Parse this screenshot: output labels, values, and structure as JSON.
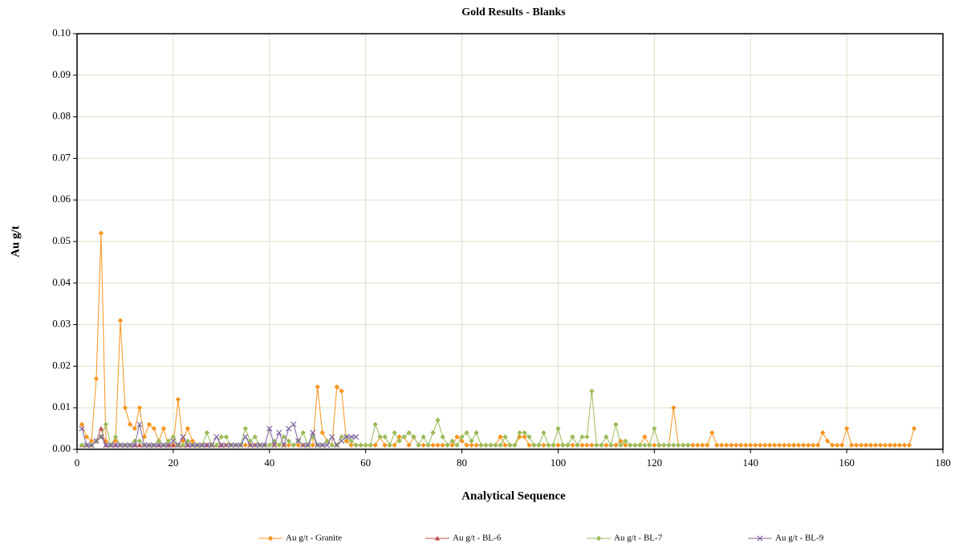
{
  "chart_data": {
    "type": "line",
    "title": "Gold Results - Blanks",
    "x_label": "Analytical Sequence",
    "y_label": "Au g/t",
    "xlim": [
      0,
      180
    ],
    "xticks": [
      0,
      20,
      40,
      60,
      80,
      100,
      120,
      140,
      160,
      180
    ],
    "ylim": [
      0,
      0.1
    ],
    "yticks": [
      {
        "value": 0,
        "label": "0.00"
      },
      {
        "value": 0.01,
        "label": "0.01"
      },
      {
        "value": 0.02,
        "label": "0.02"
      },
      {
        "value": 0.03,
        "label": "0.03"
      },
      {
        "value": 0.04,
        "label": "0.04"
      },
      {
        "value": 0.05,
        "label": "0.05"
      },
      {
        "value": 0.06,
        "label": "0.06"
      },
      {
        "value": 0.07,
        "label": "0.07"
      },
      {
        "value": 0.08,
        "label": "0.08"
      },
      {
        "value": 0.09,
        "label": "0.09"
      },
      {
        "value": 0.1,
        "label": "0.10"
      }
    ],
    "grid": true,
    "legend": "bottom",
    "series": [
      {
        "name": "Au g/t - Granite",
        "color": "#f7941d",
        "marker": "diamond",
        "x": [
          1,
          2,
          3,
          4,
          5,
          6,
          7,
          8,
          9,
          10,
          11,
          12,
          13,
          14,
          15,
          16,
          17,
          18,
          19,
          20,
          21,
          22,
          23,
          24,
          25,
          26,
          27,
          28,
          29,
          30,
          31,
          32,
          33,
          34,
          35,
          36,
          37,
          38,
          39,
          40,
          41,
          42,
          43,
          44,
          45,
          46,
          47,
          48,
          49,
          50,
          51,
          52,
          53,
          54,
          55,
          56,
          57,
          58,
          59,
          60,
          61,
          62,
          63,
          64,
          65,
          66,
          67,
          68,
          69,
          70,
          71,
          72,
          73,
          74,
          75,
          76,
          77,
          78,
          79,
          80,
          81,
          82,
          83,
          84,
          85,
          86,
          87,
          88,
          89,
          90,
          91,
          92,
          93,
          94,
          95,
          96,
          97,
          98,
          99,
          100,
          101,
          102,
          103,
          104,
          105,
          106,
          107,
          108,
          109,
          110,
          111,
          112,
          113,
          114,
          115,
          116,
          117,
          118,
          119,
          120,
          121,
          122,
          123,
          124,
          125,
          126,
          127,
          128,
          129,
          130,
          131,
          132,
          133,
          134,
          135,
          136,
          137,
          138,
          139,
          140,
          141,
          142,
          143,
          144,
          145,
          146,
          147,
          148,
          149,
          150,
          151,
          152,
          153,
          154,
          155,
          156,
          157,
          158,
          159,
          160,
          161,
          162,
          163,
          164,
          165,
          166,
          167,
          168,
          169,
          170,
          171,
          172,
          173,
          174
        ],
        "values": [
          0.006,
          0.003,
          0.002,
          0.017,
          0.052,
          0.002,
          0.001,
          0.002,
          0.031,
          0.01,
          0.006,
          0.005,
          0.01,
          0.003,
          0.006,
          0.005,
          0.002,
          0.005,
          0.001,
          0.001,
          0.012,
          0.002,
          0.005,
          0.002,
          0.001,
          0.001,
          0.001,
          0.001,
          0.001,
          0.001,
          0.001,
          0.001,
          0.001,
          0.001,
          0.001,
          0.001,
          0.001,
          0.001,
          0.001,
          0.001,
          0.001,
          0.001,
          0.001,
          0.001,
          0.001,
          0.001,
          0.001,
          0.001,
          0.001,
          0.015,
          0.004,
          0.002,
          0.001,
          0.015,
          0.014,
          0.002,
          0.001,
          0.001,
          0.001,
          0.001,
          0.001,
          0.001,
          0.003,
          0.001,
          0.001,
          0.001,
          0.003,
          0.003,
          0.001,
          0.003,
          0.001,
          0.001,
          0.001,
          0.001,
          0.001,
          0.001,
          0.001,
          0.001,
          0.003,
          0.002,
          0.001,
          0.001,
          0.001,
          0.001,
          0.001,
          0.001,
          0.001,
          0.003,
          0.001,
          0.001,
          0.001,
          0.003,
          0.003,
          0.001,
          0.001,
          0.001,
          0.001,
          0.001,
          0.001,
          0.001,
          0.001,
          0.001,
          0.001,
          0.001,
          0.001,
          0.001,
          0.001,
          0.001,
          0.001,
          0.001,
          0.001,
          0.001,
          0.002,
          0.001,
          0.001,
          0.001,
          0.001,
          0.003,
          0.001,
          0.001,
          0.001,
          0.001,
          0.001,
          0.01,
          0.001,
          0.001,
          0.001,
          0.001,
          0.001,
          0.001,
          0.001,
          0.004,
          0.001,
          0.001,
          0.001,
          0.001,
          0.001,
          0.001,
          0.001,
          0.001,
          0.001,
          0.001,
          0.001,
          0.001,
          0.001,
          0.001,
          0.001,
          0.001,
          0.001,
          0.001,
          0.001,
          0.001,
          0.001,
          0.001,
          0.004,
          0.002,
          0.001,
          0.001,
          0.001,
          0.005,
          0.001,
          0.001,
          0.001,
          0.001,
          0.001,
          0.001,
          0.001,
          0.001,
          0.001,
          0.001,
          0.001,
          0.001,
          0.001,
          0.005
        ]
      },
      {
        "name": "Au g/t - BL-6",
        "color": "#c0504d",
        "marker": "triangle",
        "x": [
          1,
          2,
          3,
          4,
          5,
          6,
          7,
          8,
          9,
          10,
          11,
          12,
          13,
          14,
          15,
          16,
          17,
          18,
          19,
          20,
          21,
          22,
          23,
          24,
          25,
          26,
          27,
          28,
          29,
          30
        ],
        "values": [
          0.001,
          0.001,
          0.001,
          0.002,
          0.005,
          0.001,
          0.001,
          0.001,
          0.001,
          0.001,
          0.001,
          0.001,
          0.001,
          0.001,
          0.001,
          0.001,
          0.001,
          0.001,
          0.001,
          0.001,
          0.001,
          0.001,
          0.001,
          0.001,
          0.001,
          0.001,
          0.001,
          0.001,
          0.001,
          0.001
        ]
      },
      {
        "name": "Au g/t - BL-7",
        "color": "#9bbb59",
        "marker": "diamond",
        "x": [
          1,
          2,
          3,
          4,
          5,
          6,
          7,
          8,
          9,
          10,
          11,
          12,
          13,
          14,
          15,
          16,
          17,
          18,
          19,
          20,
          21,
          22,
          23,
          24,
          25,
          26,
          27,
          28,
          29,
          30,
          31,
          32,
          33,
          34,
          35,
          36,
          37,
          38,
          39,
          40,
          41,
          42,
          43,
          44,
          45,
          46,
          47,
          48,
          49,
          50,
          51,
          52,
          53,
          54,
          55,
          56,
          57,
          58,
          59,
          60,
          61,
          62,
          63,
          64,
          65,
          66,
          67,
          68,
          69,
          70,
          71,
          72,
          73,
          74,
          75,
          76,
          77,
          78,
          79,
          80,
          81,
          82,
          83,
          84,
          85,
          86,
          87,
          88,
          89,
          90,
          91,
          92,
          93,
          94,
          95,
          96,
          97,
          98,
          99,
          100,
          101,
          102,
          103,
          104,
          105,
          106,
          107,
          108,
          109,
          110,
          111,
          112,
          113,
          114,
          115,
          116,
          117,
          118,
          119,
          120,
          121,
          122,
          123,
          124,
          125,
          126,
          127
        ],
        "values": [
          0.001,
          0.001,
          0.001,
          0.002,
          0.003,
          0.006,
          0.001,
          0.003,
          0.001,
          0.001,
          0.001,
          0.002,
          0.002,
          0.001,
          0.001,
          0.001,
          0.002,
          0.001,
          0.002,
          0.003,
          0.001,
          0.001,
          0.002,
          0.001,
          0.001,
          0.001,
          0.004,
          0.001,
          0.001,
          0.003,
          0.003,
          0.001,
          0.001,
          0.001,
          0.005,
          0.002,
          0.003,
          0.001,
          0.001,
          0.001,
          0.002,
          0.001,
          0.003,
          0.002,
          0.001,
          0.002,
          0.004,
          0.001,
          0.003,
          0.001,
          0.001,
          0.002,
          0.001,
          0.001,
          0.003,
          0.003,
          0.002,
          0.001,
          0.001,
          0.001,
          0.001,
          0.006,
          0.003,
          0.003,
          0.001,
          0.004,
          0.002,
          0.003,
          0.004,
          0.003,
          0.001,
          0.003,
          0.001,
          0.004,
          0.007,
          0.003,
          0.001,
          0.002,
          0.001,
          0.003,
          0.004,
          0.002,
          0.004,
          0.001,
          0.001,
          0.001,
          0.001,
          0.001,
          0.003,
          0.001,
          0.001,
          0.004,
          0.004,
          0.003,
          0.001,
          0.001,
          0.004,
          0.001,
          0.001,
          0.005,
          0.001,
          0.001,
          0.003,
          0.001,
          0.003,
          0.003,
          0.014,
          0.001,
          0.001,
          0.003,
          0.001,
          0.006,
          0.001,
          0.002,
          0.001,
          0.001,
          0.001,
          0.001,
          0.001,
          0.005,
          0.001,
          0.001,
          0.001,
          0.001,
          0.001,
          0.001,
          0.001
        ]
      },
      {
        "name": "Au g/t - BL-9",
        "color": "#8064a2",
        "marker": "x",
        "x": [
          1,
          2,
          3,
          4,
          5,
          6,
          7,
          8,
          9,
          10,
          11,
          12,
          13,
          14,
          15,
          16,
          17,
          18,
          19,
          20,
          21,
          22,
          23,
          24,
          25,
          26,
          27,
          28,
          29,
          30,
          31,
          32,
          33,
          34,
          35,
          36,
          37,
          38,
          39,
          40,
          41,
          42,
          43,
          44,
          45,
          46,
          47,
          48,
          49,
          50,
          51,
          52,
          53,
          54,
          55,
          56,
          57,
          58
        ],
        "values": [
          0.005,
          0.001,
          0.001,
          0.002,
          0.003,
          0.001,
          0.001,
          0.001,
          0.001,
          0.001,
          0.001,
          0.001,
          0.006,
          0.001,
          0.001,
          0.001,
          0.001,
          0.001,
          0.001,
          0.002,
          0.001,
          0.003,
          0.001,
          0.001,
          0.001,
          0.001,
          0.001,
          0.001,
          0.003,
          0.001,
          0.001,
          0.001,
          0.001,
          0.001,
          0.003,
          0.001,
          0.001,
          0.001,
          0.001,
          0.005,
          0.001,
          0.004,
          0.001,
          0.005,
          0.006,
          0.002,
          0.001,
          0.001,
          0.004,
          0.001,
          0.001,
          0.001,
          0.003,
          0.001,
          0.002,
          0.003,
          0.003,
          0.003
        ]
      }
    ]
  }
}
